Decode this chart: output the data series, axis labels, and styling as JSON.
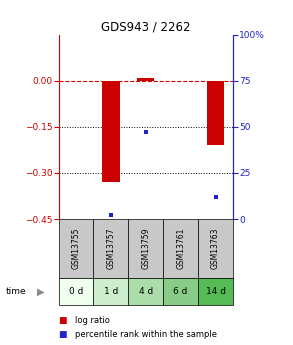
{
  "title": "GDS943 / 2262",
  "samples": [
    "GSM13755",
    "GSM13757",
    "GSM13759",
    "GSM13761",
    "GSM13763"
  ],
  "time_labels": [
    "0 d",
    "1 d",
    "4 d",
    "6 d",
    "14 d"
  ],
  "log_ratio": [
    0.0,
    -0.33,
    0.01,
    0.0,
    -0.21
  ],
  "percentile_rank": [
    null,
    2.0,
    47.0,
    null,
    12.0
  ],
  "ylim_left": [
    -0.45,
    0.15
  ],
  "ylim_right": [
    0,
    100
  ],
  "yticks_left": [
    0,
    -0.15,
    -0.3,
    -0.45
  ],
  "yticks_right": [
    0,
    25,
    50,
    75,
    100
  ],
  "left_axis_color": "#cc0000",
  "right_axis_color": "#2222cc",
  "bar_color": "#cc0000",
  "dot_color": "#2222cc",
  "dashed_line_color": "#cc0000",
  "grid_color": "#000000",
  "sample_box_color": "#c8c8c8",
  "time_box_colors": [
    "#f0fff0",
    "#cceecc",
    "#aaddaa",
    "#88cc88",
    "#55bb55"
  ],
  "legend_bar_label": "log ratio",
  "legend_dot_label": "percentile rank within the sample",
  "fig_width": 2.93,
  "fig_height": 3.45,
  "dpi": 100
}
